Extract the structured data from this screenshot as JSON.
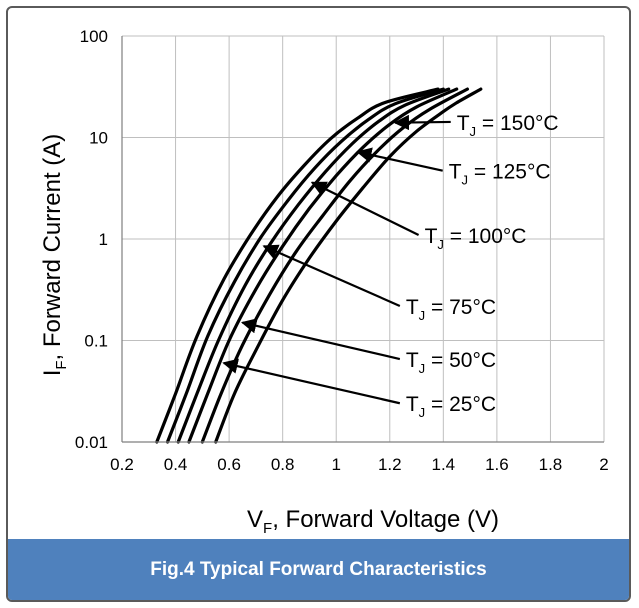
{
  "caption": "Fig.4 Typical Forward Characteristics",
  "colors": {
    "caption_bg": "#4f81bd",
    "curve": "#000000",
    "grid": "#bfbfbf"
  },
  "chart_data": {
    "type": "line",
    "title": "",
    "xlabel": {
      "main": "V",
      "sub": "F",
      "rest": ", Forward Voltage (V)"
    },
    "ylabel": {
      "main": "I",
      "sub": "F",
      "rest": ", Forward Current (A)"
    },
    "xlim": [
      0.2,
      2
    ],
    "ylim": [
      0.01,
      100
    ],
    "yscale": "log",
    "grid": true,
    "x_ticks": [
      "0.2",
      "0.4",
      "0.6",
      "0.8",
      "1",
      "1.2",
      "1.4",
      "1.6",
      "1.8",
      "2"
    ],
    "y_ticks": [
      "0.01",
      "0.1",
      "1",
      "10",
      "100"
    ],
    "series": [
      {
        "temp": "25",
        "x": [
          0.55,
          0.62,
          0.7,
          0.8,
          0.9,
          1.0,
          1.1,
          1.2,
          1.3,
          1.4,
          1.45,
          1.54
        ],
        "y": [
          0.01,
          0.03,
          0.08,
          0.25,
          0.65,
          1.5,
          3.2,
          6.5,
          11.5,
          18,
          22,
          30
        ]
      },
      {
        "temp": "50",
        "x": [
          0.5,
          0.57,
          0.65,
          0.75,
          0.85,
          0.95,
          1.05,
          1.15,
          1.25,
          1.35,
          1.49
        ],
        "y": [
          0.01,
          0.03,
          0.09,
          0.28,
          0.75,
          1.7,
          3.7,
          7.2,
          12.5,
          19,
          30
        ]
      },
      {
        "temp": "75",
        "x": [
          0.45,
          0.52,
          0.6,
          0.7,
          0.8,
          0.9,
          1.0,
          1.1,
          1.2,
          1.3,
          1.45
        ],
        "y": [
          0.01,
          0.03,
          0.1,
          0.32,
          0.85,
          2,
          4.2,
          8,
          13.5,
          20,
          30
        ]
      },
      {
        "temp": "100",
        "x": [
          0.41,
          0.48,
          0.56,
          0.66,
          0.76,
          0.86,
          0.96,
          1.06,
          1.16,
          1.26,
          1.42
        ],
        "y": [
          0.01,
          0.03,
          0.1,
          0.35,
          0.95,
          2.2,
          4.6,
          8.7,
          14.5,
          21,
          30
        ]
      },
      {
        "temp": "125",
        "x": [
          0.37,
          0.44,
          0.52,
          0.62,
          0.72,
          0.82,
          0.92,
          1.02,
          1.12,
          1.22,
          1.4
        ],
        "y": [
          0.01,
          0.03,
          0.11,
          0.38,
          1.05,
          2.4,
          5,
          9.2,
          15,
          21.5,
          30
        ]
      },
      {
        "temp": "150",
        "x": [
          0.33,
          0.4,
          0.48,
          0.58,
          0.68,
          0.78,
          0.88,
          0.98,
          1.08,
          1.18,
          1.38
        ],
        "y": [
          0.01,
          0.03,
          0.11,
          0.4,
          1.1,
          2.6,
          5.3,
          9.8,
          15.5,
          22,
          30
        ]
      }
    ],
    "annotations": [
      {
        "prefix": "T",
        "sub": "J",
        "text": " = 150",
        "unit": "°C",
        "label_x": 1.45,
        "label_y": 13,
        "arrow_x": 1.22,
        "arrow_y": 14
      },
      {
        "prefix": "T",
        "sub": "J",
        "text": " = 125",
        "unit": "°C",
        "label_x": 1.42,
        "label_y": 4.3,
        "arrow_x": 1.08,
        "arrow_y": 7.2
      },
      {
        "prefix": "T",
        "sub": "J",
        "text": " = 100",
        "unit": "°C",
        "label_x": 1.33,
        "label_y": 1.0,
        "arrow_x": 0.91,
        "arrow_y": 3.6
      },
      {
        "prefix": "T",
        "sub": "J",
        "text": " = 75",
        "unit": "°C",
        "label_x": 1.26,
        "label_y": 0.2,
        "arrow_x": 0.73,
        "arrow_y": 0.85
      },
      {
        "prefix": "T",
        "sub": "J",
        "text": " = 50",
        "unit": "°C",
        "label_x": 1.26,
        "label_y": 0.06,
        "arrow_x": 0.65,
        "arrow_y": 0.15
      },
      {
        "prefix": "T",
        "sub": "J",
        "text": " = 25",
        "unit": "°C",
        "label_x": 1.26,
        "label_y": 0.022,
        "arrow_x": 0.58,
        "arrow_y": 0.06
      }
    ]
  }
}
